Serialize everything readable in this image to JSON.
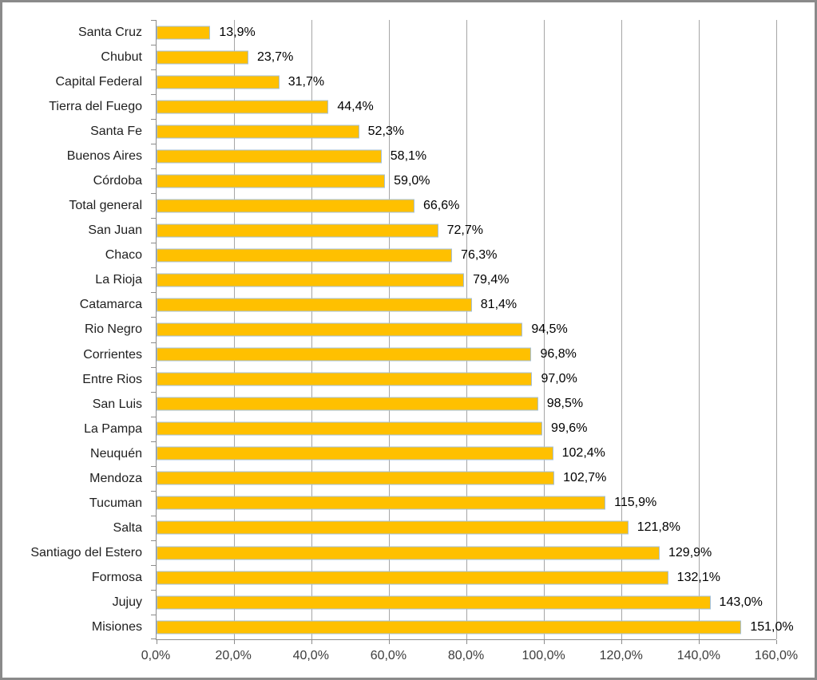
{
  "chart_data": {
    "type": "bar",
    "orientation": "horizontal",
    "title": "",
    "xlabel": "",
    "ylabel": "",
    "xlim": [
      0,
      160
    ],
    "grid": true,
    "legend": false,
    "categories": [
      "Santa Cruz",
      "Chubut",
      "Capital Federal",
      "Tierra del Fuego",
      "Santa Fe",
      "Buenos Aires",
      "Córdoba",
      "Total general",
      "San Juan",
      "Chaco",
      "La Rioja",
      "Catamarca",
      "Rio Negro",
      "Corrientes",
      "Entre Rios",
      "San Luis",
      "La Pampa",
      "Neuquén",
      "Mendoza",
      "Tucuman",
      "Salta",
      "Santiago del Estero",
      "Formosa",
      "Jujuy",
      "Misiones"
    ],
    "values": [
      13.9,
      23.7,
      31.7,
      44.4,
      52.3,
      58.1,
      59.0,
      66.6,
      72.7,
      76.3,
      79.4,
      81.4,
      94.5,
      96.8,
      97.0,
      98.5,
      99.6,
      102.4,
      102.7,
      115.9,
      121.8,
      129.9,
      132.1,
      143.0,
      151.0
    ],
    "value_labels": [
      "13,9%",
      "23,7%",
      "31,7%",
      "44,4%",
      "52,3%",
      "58,1%",
      "59,0%",
      "66,6%",
      "72,7%",
      "76,3%",
      "79,4%",
      "81,4%",
      "94,5%",
      "96,8%",
      "97,0%",
      "98,5%",
      "99,6%",
      "102,4%",
      "102,7%",
      "115,9%",
      "121,8%",
      "129,9%",
      "132,1%",
      "143,0%",
      "151,0%"
    ],
    "x_tick_values": [
      0,
      20,
      40,
      60,
      80,
      100,
      120,
      140,
      160
    ],
    "x_tick_labels": [
      "0,0%",
      "20,0%",
      "40,0%",
      "60,0%",
      "80,0%",
      "100,0%",
      "120,0%",
      "140,0%",
      "160,0%"
    ],
    "colors": {
      "bar_fill": "#ffc000",
      "bar_border": "#a3c0dc",
      "gridline": "#a6a6a6",
      "axis_line": "#8c8c8c",
      "frame_border": "#8a8a8a",
      "label_text": "#1f1f1f",
      "value_text": "#000000",
      "tick_text": "#3c3c3c",
      "background": "#ffffff"
    }
  }
}
